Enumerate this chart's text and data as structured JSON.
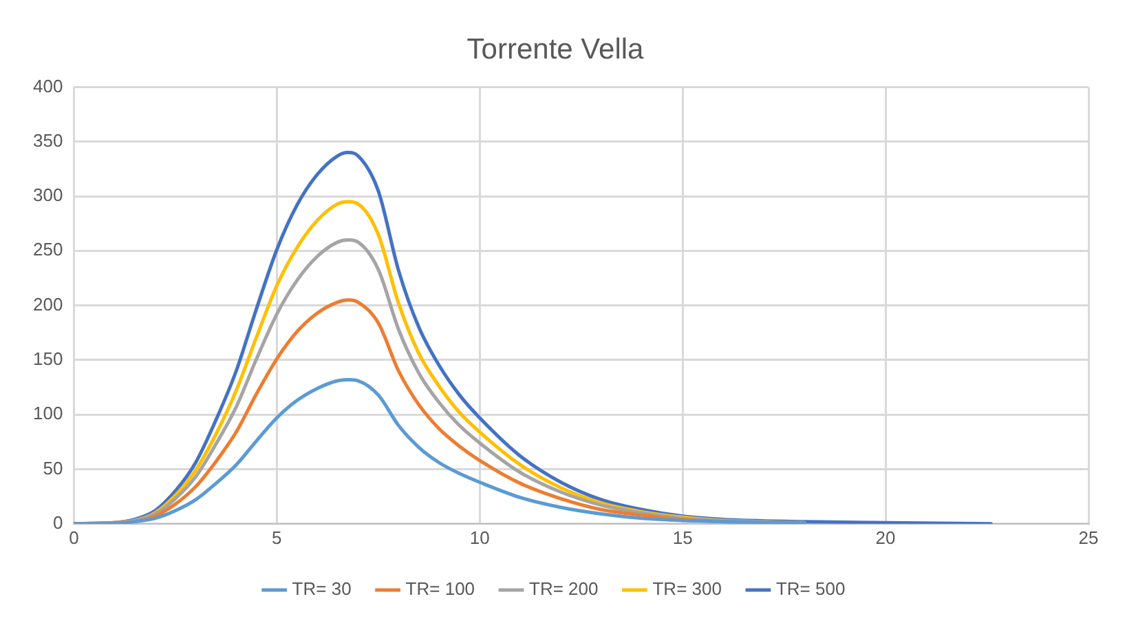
{
  "chart_data": {
    "type": "line",
    "title": "Torrente Vella",
    "x": [
      0,
      1,
      1.5,
      2,
      2.5,
      3,
      3.5,
      4,
      4.5,
      5,
      5.5,
      6,
      6.5,
      6.75,
      7,
      7.5,
      8,
      8.5,
      9,
      9.5,
      10,
      11,
      12,
      13,
      14,
      15,
      16,
      18,
      20,
      22.6
    ],
    "series": [
      {
        "name": "TR= 30",
        "color": "#5b9bd5",
        "values": [
          0,
          0,
          2,
          5,
          12,
          22,
          37,
          54,
          76,
          97,
          113,
          124,
          131,
          132,
          131,
          118,
          90,
          70,
          56,
          46,
          38,
          24,
          15,
          9,
          5,
          3,
          2,
          1,
          null,
          null
        ]
      },
      {
        "name": "TR= 100",
        "color": "#ed7d31",
        "values": [
          0,
          1,
          2,
          7,
          18,
          34,
          57,
          84,
          119,
          151,
          176,
          193,
          203,
          205,
          203,
          184,
          140,
          109,
          87,
          71,
          58,
          37,
          23,
          13,
          8,
          4,
          2,
          1,
          null,
          null
        ]
      },
      {
        "name": "TR= 200",
        "color": "#a5a5a5",
        "values": [
          0,
          1,
          3,
          9,
          23,
          43,
          73,
          107,
          151,
          192,
          223,
          245,
          258,
          260,
          258,
          233,
          178,
          138,
          111,
          90,
          74,
          47,
          29,
          17,
          10,
          5,
          3,
          1,
          null,
          null
        ]
      },
      {
        "name": "TR= 300",
        "color": "#ffc000",
        "values": [
          0,
          1,
          3,
          10,
          26,
          49,
          82,
          122,
          171,
          218,
          253,
          278,
          293,
          295,
          293,
          265,
          202,
          156,
          126,
          102,
          84,
          54,
          33,
          19,
          11,
          6,
          3,
          1,
          null,
          null
        ]
      },
      {
        "name": "TR= 500",
        "color": "#4472c4",
        "values": [
          0,
          1,
          4,
          12,
          30,
          56,
          95,
          140,
          197,
          251,
          292,
          320,
          337,
          340,
          337,
          305,
          232,
          180,
          145,
          118,
          97,
          62,
          38,
          22,
          13,
          7,
          4,
          2,
          1,
          0
        ]
      }
    ],
    "xlim": [
      0,
      25
    ],
    "xticks": [
      0,
      5,
      10,
      15,
      20,
      25
    ],
    "ylim": [
      0,
      400
    ],
    "yticks": [
      0,
      50,
      100,
      150,
      200,
      250,
      300,
      350,
      400
    ],
    "grid": true,
    "legend": "bottom",
    "marker": "none",
    "line_style": "solid"
  }
}
